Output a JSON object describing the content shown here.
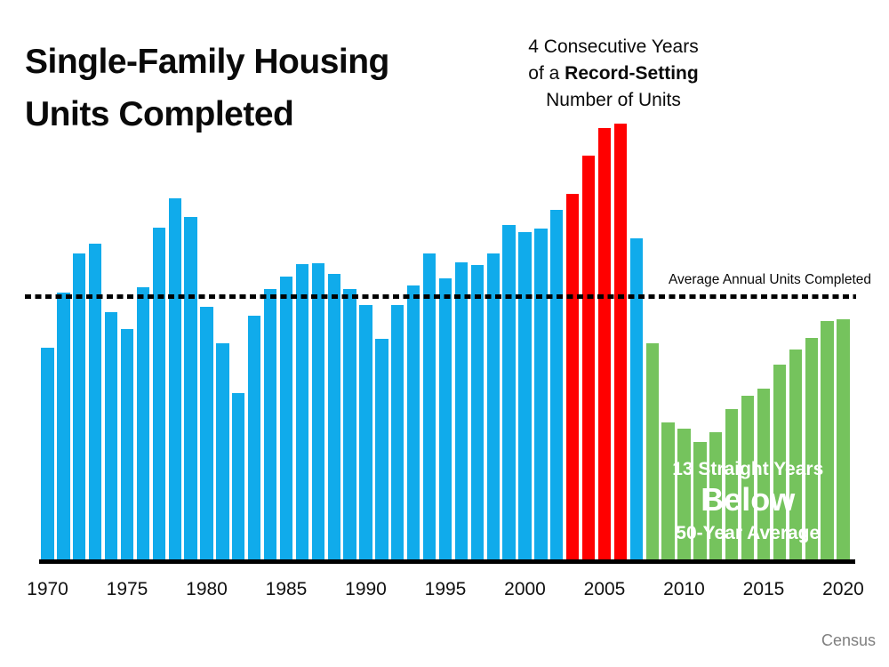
{
  "title": {
    "line1": "Single-Family Housing",
    "line2": "Units Completed"
  },
  "annotation_top": {
    "line1": "4 Consecutive Years",
    "line2_prefix": "of a ",
    "line2_bold": "Record-Setting",
    "line3": "Number of Units"
  },
  "average_line": {
    "label": "Average Annual Units Completed"
  },
  "green_callout": {
    "line1": "13 Straight Years",
    "line2": "Below",
    "line3": "50-Year Average"
  },
  "source": "Census",
  "colors": {
    "blue": "#10ABEB",
    "red": "#FF0000",
    "green": "#75C35D",
    "axis": "#000000",
    "source_gray": "#7F7F7F"
  },
  "chart_data": {
    "type": "bar",
    "title": "Single-Family Housing Units Completed",
    "x": [
      1970,
      1971,
      1972,
      1973,
      1974,
      1975,
      1976,
      1977,
      1978,
      1979,
      1980,
      1981,
      1982,
      1983,
      1984,
      1985,
      1986,
      1987,
      1988,
      1989,
      1990,
      1991,
      1992,
      1993,
      1994,
      1995,
      1996,
      1997,
      1998,
      1999,
      2000,
      2001,
      2002,
      2003,
      2004,
      2005,
      2006,
      2007,
      2008,
      2009,
      2010,
      2011,
      2012,
      2013,
      2014,
      2015,
      2016,
      2017,
      2018,
      2019,
      2020
    ],
    "values": [
      802,
      1014,
      1160,
      1197,
      940,
      875,
      1034,
      1258,
      1369,
      1301,
      957,
      819,
      632,
      924,
      1025,
      1072,
      1120,
      1123,
      1085,
      1026,
      966,
      838,
      964,
      1039,
      1160,
      1066,
      1129,
      1116,
      1160,
      1270,
      1242,
      1256,
      1325,
      1386,
      1532,
      1636,
      1654,
      1218,
      819,
      520,
      496,
      447,
      483,
      569,
      620,
      648,
      738,
      795,
      840,
      903,
      912
    ],
    "values_unit": "thousands of units (estimated from bar heights)",
    "xticks": [
      1970,
      1975,
      1980,
      1985,
      1990,
      1995,
      2000,
      2005,
      2010,
      2015,
      2020
    ],
    "average_line_value": 1000,
    "average_line_style": "dotted",
    "ylim": [
      0,
      1700
    ],
    "grid": false,
    "legend": false,
    "segments": [
      {
        "years": "1970-2002",
        "color_key": "blue"
      },
      {
        "years": "2003-2006",
        "color_key": "red",
        "meaning": "4 consecutive record-setting years"
      },
      {
        "years": "2007",
        "color_key": "blue"
      },
      {
        "years": "2008-2020",
        "color_key": "green",
        "meaning": "13 straight years below 50-year average"
      }
    ],
    "xlabel": "",
    "ylabel": ""
  }
}
